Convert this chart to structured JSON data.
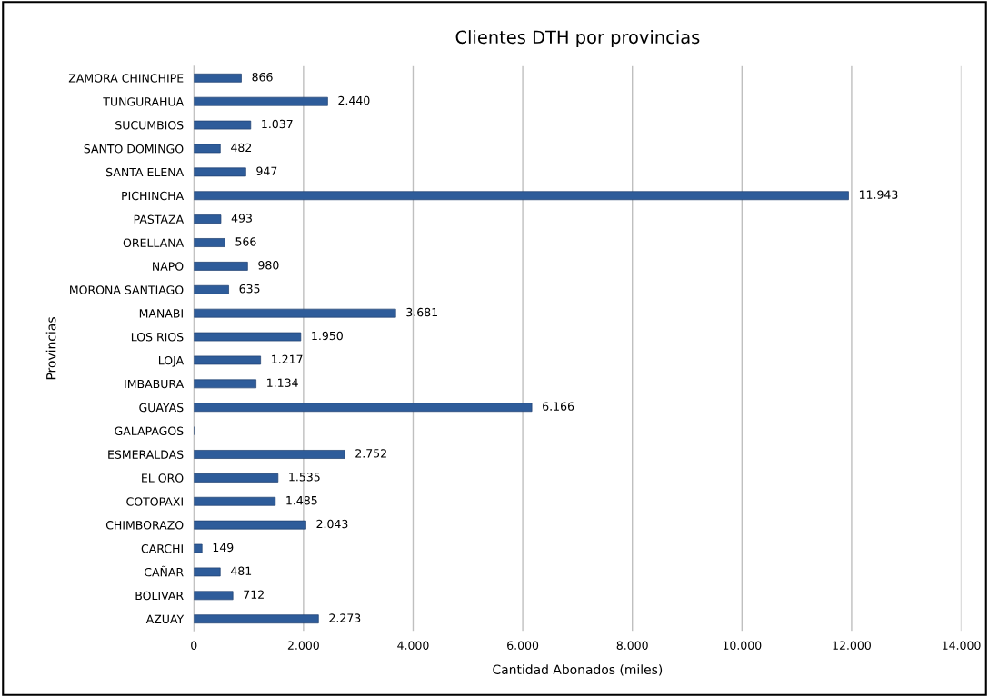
{
  "chart_data": {
    "type": "bar",
    "orientation": "horizontal",
    "title": "Clientes DTH por provincias",
    "xlabel": "Cantidad Abonados (miles)",
    "ylabel": "Provincias",
    "categories": [
      "ZAMORA CHINCHIPE",
      "TUNGURAHUA",
      "SUCUMBIOS",
      "SANTO DOMINGO",
      "SANTA ELENA",
      "PICHINCHA",
      "PASTAZA",
      "ORELLANA",
      "NAPO",
      "MORONA SANTIAGO",
      "MANABI",
      "LOS RIOS",
      "LOJA",
      "IMBABURA",
      "GUAYAS",
      "GALAPAGOS",
      "ESMERALDAS",
      "EL ORO",
      "COTOPAXI",
      "CHIMBORAZO",
      "CARCHI",
      "CAÑAR",
      "BOLIVAR",
      "AZUAY"
    ],
    "values": [
      866,
      2440,
      1037,
      482,
      947,
      11943,
      493,
      566,
      980,
      635,
      3681,
      1950,
      1217,
      1134,
      6166,
      null,
      2752,
      1535,
      1485,
      2043,
      149,
      481,
      712,
      2273
    ],
    "value_labels": [
      "866",
      "2.440",
      "1.037",
      "482",
      "947",
      "11.943",
      "493",
      "566",
      "980",
      "635",
      "3.681",
      "1.950",
      "1.217",
      "1.134",
      "6.166",
      null,
      "2.752",
      "1.535",
      "1.485",
      "2.043",
      "149",
      "481",
      "712",
      "2.273"
    ],
    "color": "#2e5c9a",
    "xlim": [
      0,
      14000
    ],
    "xticks": [
      0,
      {
        "value": 2000,
        "label": "2.000"
      },
      {
        "value": 4000,
        "label": "4.000"
      },
      {
        "value": 6000,
        "label": "6.000"
      },
      {
        "value": 8000,
        "label": "8.000"
      },
      {
        "value": 10000,
        "label": "10.000"
      },
      {
        "value": 12000,
        "label": "12.000"
      },
      {
        "value": 14000,
        "label": "14.000"
      }
    ],
    "grid": "x",
    "legend": false
  }
}
